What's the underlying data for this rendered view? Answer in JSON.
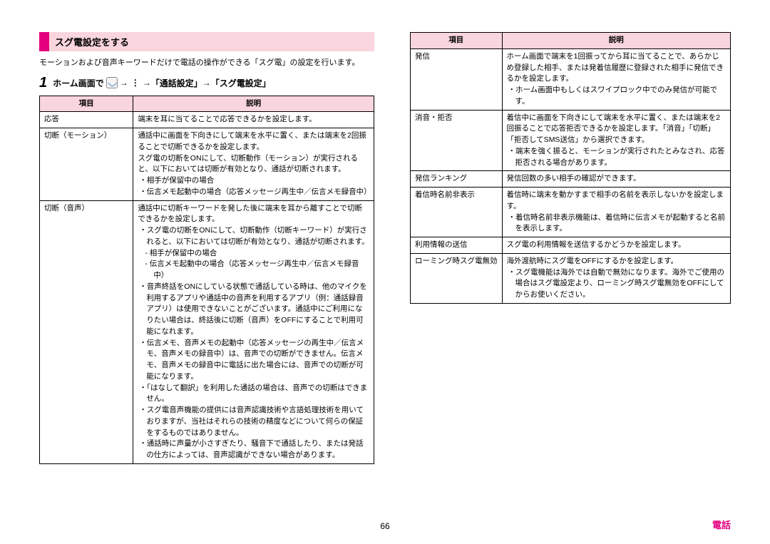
{
  "section_title": "スグ電設定をする",
  "intro": "モーションおよび音声キーワードだけで電話の操作ができる「スグ電」の設定を行います。",
  "step_num": "1",
  "step_parts": {
    "p1": "ホーム画面で",
    "arrow1": "→",
    "vdots": "⋮",
    "arrow2": "→",
    "p2": "「通話設定」",
    "arrow3": "→",
    "p3": "「スグ電設定」"
  },
  "th_item": "項目",
  "th_desc": "説明",
  "rows_left": [
    {
      "label": "応答",
      "desc": "端末を耳に当てることで応答できるかを設定します。"
    },
    {
      "label": "切断（モーション）",
      "desc": "通話中に画面を下向きにして端末を水平に置く、または端末を2回振ることで切断できるかを設定します。\nスグ電の切断をONにして、切断動作（モーション）が実行されると、以下においては切断が有効となり、通話が切断されます。",
      "bullets": [
        "相手が保留中の場合",
        "伝言メモ起動中の場合（応答メッセージ再生中／伝言メモ録音中）"
      ]
    },
    {
      "label": "切断（音声）",
      "desc": "通話中に切断キーワードを発した後に端末を耳から離すことで切断できるかを設定します。",
      "bullets": [
        "スグ電の切断をONにして、切断動作（切断キーワード）が実行されると、以下においては切断が有効となり、通話が切断されます。",
        "--相手が保留中の場合",
        "--伝言メモ起動中の場合（応答メッセージ再生中／伝言メモ録音中）",
        "音声終話をONにしている状態で通話している時は、他のマイクを利用するアプリや通話中の音声を利用するアプリ（例：通話録音アプリ）は使用できないことがございます。通話中にご利用になりたい場合は、終話後に切断（音声）をOFFにすることで利用可能になれます。",
        "伝言メモ、音声メモの起動中（応答メッセージの再生中／伝言メモ、音声メモの録音中）は、音声での切断ができません。伝言メモ、音声メモの録音中に電話に出た場合には、音声での切断が可能になります。",
        "「はなして翻訳」を利用した通話の場合は、音声での切断はできません。",
        "スグ電音声機能の提供には音声認識技術や言語処理技術を用いておりますが、当社はそれらの技術の精度などについて何らの保証をするものではありません。",
        "通話時に声量が小さすぎたり、騒音下で通話したり、または発話の仕方によっては、音声認識ができない場合があります。"
      ]
    }
  ],
  "rows_right": [
    {
      "label": "発信",
      "desc": "ホーム画面で端末を1回振ってから耳に当てることで、あらかじめ登録した相手、または発着信履歴に登録された相手に発信できるかを設定します。",
      "bullets": [
        "ホーム画面中もしくはスワイプロック中でのみ発信が可能です。"
      ]
    },
    {
      "label": "消音・拒否",
      "desc": "着信中に画面を下向きにして端末を水平に置く、または端末を2回振ることで応答拒否できるかを設定します。「消音」「切断」「拒否してSMS送信」から選択できます。",
      "bullets": [
        "端末を強く振ると、モーションが実行されたとみなされ、応答拒否される場合があります。"
      ]
    },
    {
      "label": "発信ランキング",
      "desc": "発信回数の多い相手の確認ができます。"
    },
    {
      "label": "着信時名前非表示",
      "desc": "着信時に端末を動かすまで相手の名前を表示しないかを設定します。",
      "bullets": [
        "着信時名前非表示機能は、着信時に伝言メモが起動すると名前を表示します。"
      ]
    },
    {
      "label": "利用情報の送信",
      "desc": "スグ電の利用情報を送信するかどうかを設定します。"
    },
    {
      "label": "ローミング時スグ電無効",
      "desc": "海外渡航時にスグ電をOFFにするかを設定します。",
      "bullets": [
        "スグ電機能は海外では自動で無効になります。海外でご使用の場合はスグ電設定より、ローミング時スグ電無効をOFFにしてからお使いください。"
      ]
    }
  ],
  "page_num": "66",
  "footer_label": "電話"
}
